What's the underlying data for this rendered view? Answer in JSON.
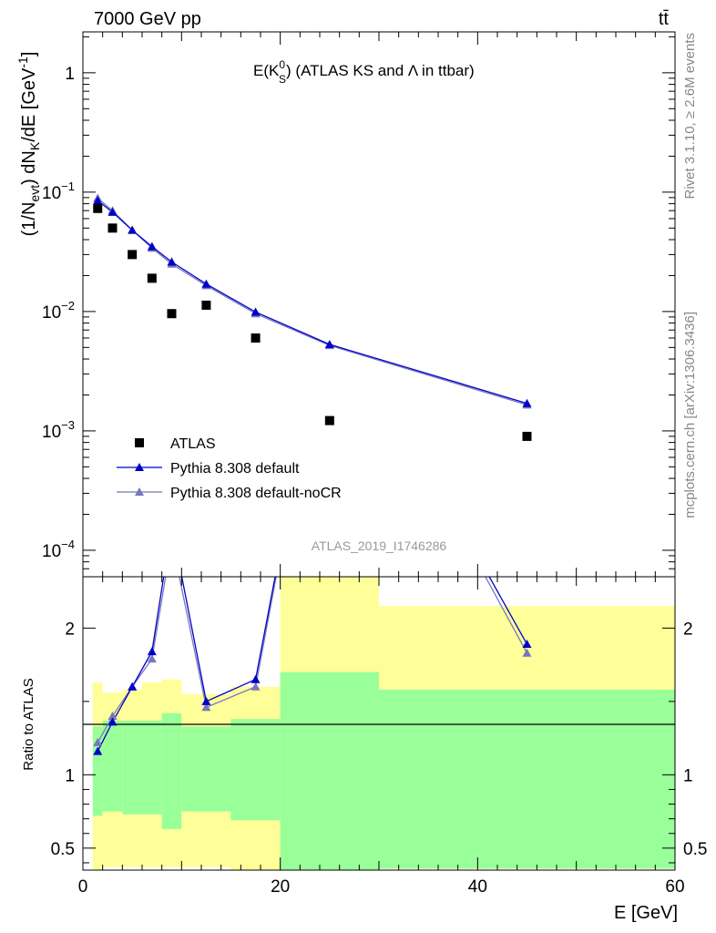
{
  "header": {
    "left": "7000 GeV pp",
    "right": "tt̄"
  },
  "side_text": {
    "rivet": "Rivet 3.1.10, ≥ 2.6M events",
    "mcplots": "mcplots.cern.ch [arXiv:1306.3436]"
  },
  "chart_data": {
    "type": "scatter",
    "title_prefix": "E(K",
    "title_sup": "0",
    "title_sub": "S",
    "title_suffix": ") (ATLAS KS and Λ in ttbar)",
    "watermark": "ATLAS_2019_I1746286",
    "ylabel": "(1/N",
    "ylabel_sub1": "evt",
    "ylabel_mid": ") dN",
    "ylabel_sub2": "K",
    "ylabel_end": "/dE [GeV",
    "ylabel_sup": "-1",
    "ylabel_close": "]",
    "ratio_ylabel": "Ratio to ATLAS",
    "xlabel": "E [GeV]",
    "xlim": [
      0,
      60
    ],
    "ylim_log": [
      6e-05,
      2.2
    ],
    "ratio_ylim": [
      0.35,
      2.35
    ],
    "log_y": true,
    "x_ticks": [
      "0",
      "20",
      "40",
      "60"
    ],
    "y_ticks": [
      {
        "mant": "1",
        "exp": ""
      },
      {
        "mant": "10",
        "exp": "−1"
      },
      {
        "mant": "10",
        "exp": "−2"
      },
      {
        "mant": "10",
        "exp": "−3"
      },
      {
        "mant": "10",
        "exp": "−4"
      }
    ],
    "ratio_ticks": [
      "0.5",
      "1",
      "2"
    ],
    "bins": [
      [
        1,
        2
      ],
      [
        2,
        4
      ],
      [
        4,
        6
      ],
      [
        6,
        8
      ],
      [
        8,
        10
      ],
      [
        10,
        15
      ],
      [
        15,
        20
      ],
      [
        20,
        30
      ],
      [
        30,
        60
      ]
    ],
    "x": [
      1.5,
      3,
      5,
      7,
      9,
      12.5,
      17.5,
      25,
      45
    ],
    "series": [
      {
        "name": "ATLAS",
        "color": "#000000",
        "marker": "square",
        "values": [
          0.073,
          0.05,
          0.03,
          0.019,
          0.0096,
          0.0113,
          0.006,
          0.00122,
          0.0009
        ]
      },
      {
        "name": "Pythia 8.308 default",
        "color": "#0000cc",
        "marker": "triangle",
        "values": [
          0.085,
          0.068,
          0.048,
          0.035,
          0.026,
          0.017,
          0.0099,
          0.0053,
          0.0017
        ]
      },
      {
        "name": "Pythia 8.308 default-noCR",
        "color": "#7777bb",
        "marker": "triangle",
        "values": [
          0.089,
          0.07,
          0.048,
          0.034,
          0.025,
          0.0165,
          0.0096,
          0.0052,
          0.00165
        ]
      }
    ],
    "ratio_series": [
      {
        "name": "Pythia 8.308 default",
        "values": [
          1.16,
          1.36,
          1.6,
          1.84,
          2.7,
          1.5,
          1.65,
          4.3,
          1.89
        ]
      },
      {
        "name": "Pythia 8.308 default-noCR",
        "values": [
          1.22,
          1.4,
          1.6,
          1.79,
          2.6,
          1.46,
          1.6,
          4.3,
          1.83
        ]
      }
    ],
    "band_yellow": {
      "lo": [
        0.35,
        0.37,
        0.37,
        0.37,
        0.37,
        0.37,
        0.35,
        0.35,
        0.36
      ],
      "hi": [
        1.63,
        1.56,
        1.58,
        1.63,
        1.65,
        1.55,
        1.6,
        2.35,
        2.15
      ]
    },
    "band_green": {
      "lo": [
        0.72,
        0.75,
        0.73,
        0.73,
        0.63,
        0.75,
        0.69,
        0.35,
        0.36
      ],
      "hi": [
        1.33,
        1.37,
        1.37,
        1.37,
        1.42,
        1.33,
        1.38,
        1.7,
        1.58
      ]
    },
    "colors": {
      "yellow": "#ffff99",
      "green": "#99ff99"
    }
  }
}
